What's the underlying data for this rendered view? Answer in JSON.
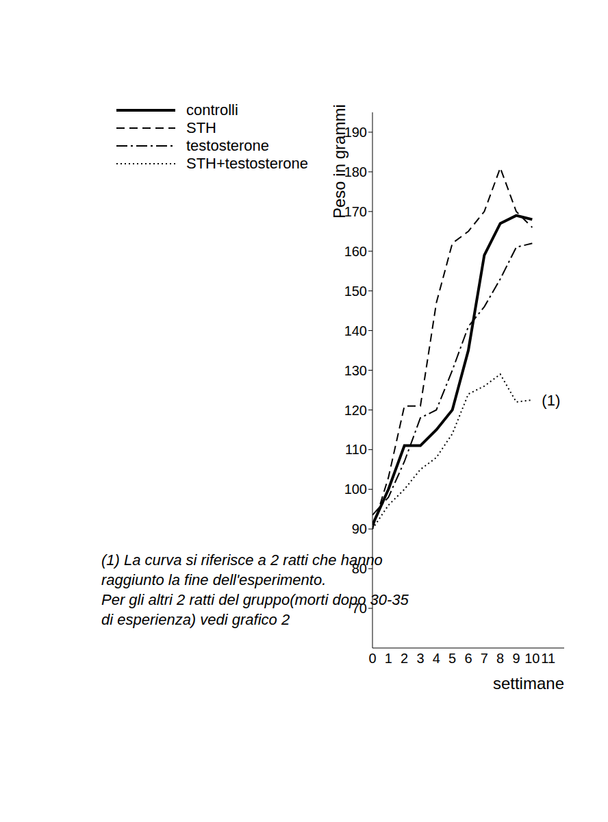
{
  "chart_data": {
    "type": "line",
    "x_label": "settimane",
    "y_label": "Peso in grammi",
    "x": [
      0,
      1,
      2,
      3,
      4,
      5,
      6,
      7,
      8,
      9,
      10
    ],
    "series": [
      {
        "name": "controlli",
        "color": "#000000",
        "line_style": "solid",
        "values": [
          91,
          100,
          111,
          111,
          115,
          120,
          135,
          159,
          167,
          169,
          168
        ]
      },
      {
        "name": "STH",
        "color": "#000000",
        "line_style": "dashed",
        "values": [
          90,
          103,
          121,
          121,
          147,
          162,
          165,
          170,
          181,
          170,
          166
        ]
      },
      {
        "name": "testosterone",
        "color": "#000000",
        "line_style": "dashdot",
        "values": [
          93.5,
          98,
          107,
          118,
          120,
          130,
          141,
          146,
          153,
          161,
          162
        ]
      },
      {
        "name": "STH+testosterone",
        "color": "#000000",
        "line_style": "dotted",
        "values": [
          90,
          96,
          100,
          105,
          108,
          114,
          124,
          126,
          129,
          122,
          122.5
        ]
      }
    ],
    "xlim": [
      0,
      12
    ],
    "xticks": [
      0,
      1,
      2,
      3,
      4,
      5,
      6,
      7,
      8,
      9,
      10,
      11
    ],
    "ylim": [
      60,
      195
    ],
    "yticks": [
      70,
      80,
      90,
      100,
      110,
      120,
      130,
      140,
      150,
      160,
      170,
      180,
      190
    ],
    "legend": "top-left",
    "annotations": [
      {
        "text": "(1)",
        "x": 10,
        "y": 122.5
      }
    ],
    "footnote": [
      "(1)  La curva si riferisce a 2 ratti che hanno",
      "raggiunto la fine dell'esperimento.",
      "Per gli altri 2 ratti del gruppo(morti dopo 30-35",
      "di esperienza) vedi grafico 2"
    ]
  }
}
